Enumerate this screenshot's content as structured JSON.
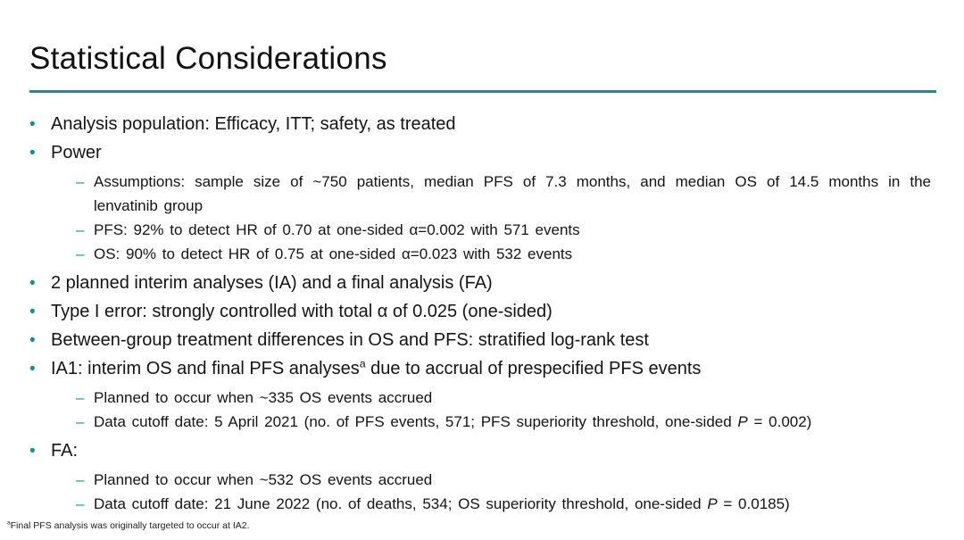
{
  "slide": {
    "title": "Statistical Considerations",
    "accent_color": "#198f8d",
    "bullets": [
      {
        "level": 1,
        "segments": [
          {
            "text": "Analysis population: Efficacy, ITT; safety, as treated"
          }
        ]
      },
      {
        "level": 1,
        "segments": [
          {
            "text": "Power"
          }
        ]
      },
      {
        "level": 2,
        "segments": [
          {
            "text": "Assumptions: sample size of ~750 patients, median PFS of 7.3 months, and median OS of 14.5 months in the lenvatinib group"
          }
        ]
      },
      {
        "level": 2,
        "segments": [
          {
            "text": "PFS: 92% to detect HR of 0.70 at one-sided α=0.002 with 571 events"
          }
        ]
      },
      {
        "level": 2,
        "segments": [
          {
            "text": "OS: 90% to detect HR of 0.75 at one-sided α=0.023 with 532 events"
          }
        ]
      },
      {
        "level": 1,
        "segments": [
          {
            "text": "2 planned interim analyses (IA) and a final analysis (FA)"
          }
        ]
      },
      {
        "level": 1,
        "segments": [
          {
            "text": "Type I error: strongly controlled with total α of 0.025 (one-sided)"
          }
        ]
      },
      {
        "level": 1,
        "segments": [
          {
            "text": "Between-group treatment differences in OS and PFS: stratified log-rank test"
          }
        ]
      },
      {
        "level": 1,
        "segments": [
          {
            "text": "IA1: interim OS and final PFS analyses"
          },
          {
            "text": "a",
            "style": "sup"
          },
          {
            "text": " due to accrual of prespecified PFS events"
          }
        ]
      },
      {
        "level": 2,
        "segments": [
          {
            "text": "Planned to occur when ~335 OS events accrued"
          }
        ]
      },
      {
        "level": 2,
        "segments": [
          {
            "text": "Data cutoff date: 5 April 2021 (no. of PFS events, 571; PFS superiority threshold, one-sided "
          },
          {
            "text": "P",
            "style": "italic"
          },
          {
            "text": " = 0.002)"
          }
        ]
      },
      {
        "level": 1,
        "segments": [
          {
            "text": "FA:"
          }
        ]
      },
      {
        "level": 2,
        "segments": [
          {
            "text": "Planned to occur when ~532 OS events accrued"
          }
        ]
      },
      {
        "level": 2,
        "segments": [
          {
            "text": "Data cutoff date: 21 June 2022 (no. of deaths, 534; OS superiority threshold, one-sided "
          },
          {
            "text": "P",
            "style": "italic"
          },
          {
            "text": " = 0.0185)"
          }
        ]
      }
    ],
    "footnote": {
      "segments": [
        {
          "text": "a",
          "style": "sup"
        },
        {
          "text": "Final PFS analysis was originally targeted to occur at IA2."
        }
      ]
    },
    "markers": {
      "bullet_glyph": "•",
      "dash_glyph": "–"
    }
  }
}
